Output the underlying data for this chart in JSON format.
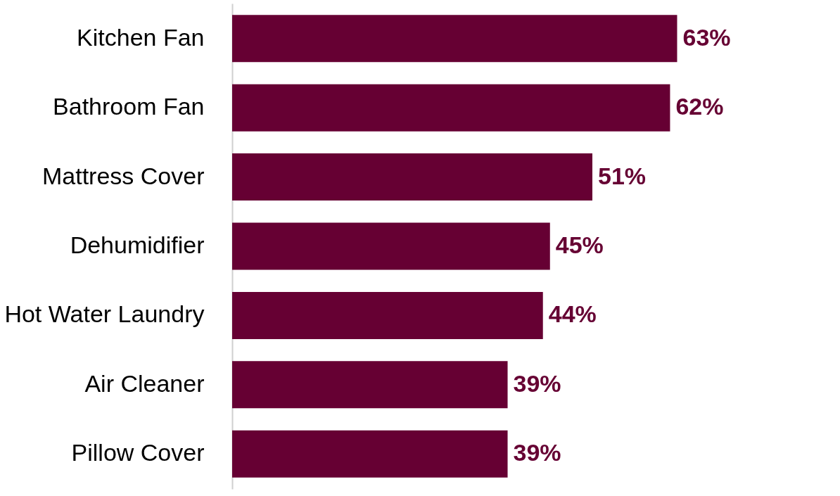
{
  "chart_data": {
    "type": "bar",
    "orientation": "horizontal",
    "categories": [
      "Kitchen Fan",
      "Bathroom Fan",
      "Mattress Cover",
      "Dehumidifier",
      "Hot Water Laundry",
      "Air Cleaner",
      "Pillow Cover"
    ],
    "values": [
      63,
      62,
      51,
      45,
      44,
      39,
      39
    ],
    "value_labels": [
      "63%",
      "62%",
      "51%",
      "45%",
      "44%",
      "39%",
      "39%"
    ],
    "color": "#660033",
    "grid": false
  }
}
